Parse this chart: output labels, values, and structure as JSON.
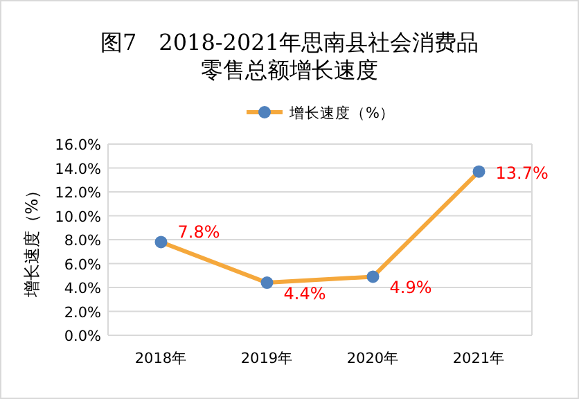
{
  "chart_data": {
    "type": "line",
    "title": "图7　2018-2021年思南县社会消费品零售总额增长速度",
    "ylabel": "增长速度（%）",
    "categories": [
      "2018年",
      "2019年",
      "2020年",
      "2021年"
    ],
    "series": [
      {
        "name": "增长速度（%）",
        "color": "#f5a83c",
        "values": [
          7.8,
          4.4,
          4.9,
          13.7
        ],
        "value_labels": [
          "7.8%",
          "4.4%",
          "4.9%",
          "13.7%"
        ]
      }
    ],
    "ylim": [
      0,
      16
    ],
    "yticks": [
      {
        "value": 0,
        "label": "0.0%"
      },
      {
        "value": 2,
        "label": "2.0%"
      },
      {
        "value": 4,
        "label": "4.0%"
      },
      {
        "value": 6,
        "label": "6.0%"
      },
      {
        "value": 8,
        "label": "8.0%"
      },
      {
        "value": 10,
        "label": "10.0%"
      },
      {
        "value": 12,
        "label": "12.0%"
      },
      {
        "value": 14,
        "label": "14.0%"
      },
      {
        "value": 16,
        "label": "16.0%"
      }
    ],
    "grid": "y",
    "legend": "top",
    "marker": "circle",
    "line_style": "solid"
  }
}
